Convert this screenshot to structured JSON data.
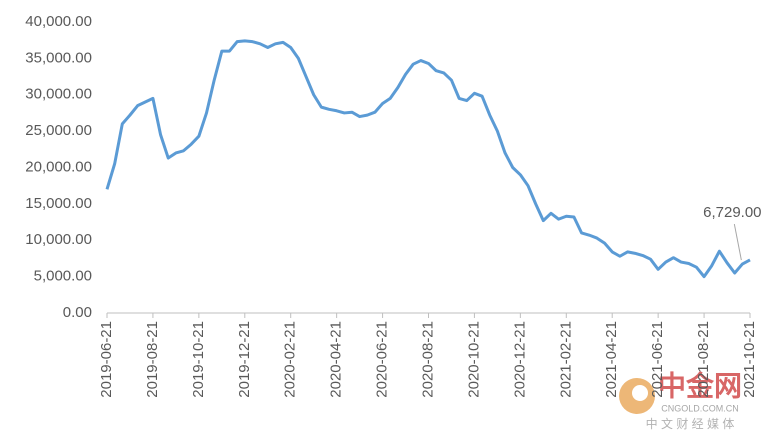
{
  "chart_data": {
    "type": "line",
    "color": "#5b9bd5",
    "categories": [
      "2019-06-21",
      null,
      null,
      null,
      null,
      null,
      "2019-08-21",
      null,
      null,
      null,
      null,
      null,
      "2019-10-21",
      null,
      null,
      null,
      null,
      null,
      "2019-12-21",
      null,
      null,
      null,
      null,
      null,
      "2020-02-21",
      null,
      null,
      null,
      null,
      null,
      "2020-04-21",
      null,
      null,
      null,
      null,
      null,
      "2020-06-21",
      null,
      null,
      null,
      null,
      null,
      "2020-08-21",
      null,
      null,
      null,
      null,
      null,
      "2020-10-21",
      null,
      null,
      null,
      null,
      null,
      "2020-12-21",
      null,
      null,
      null,
      null,
      null,
      "2021-02-21",
      null,
      null,
      null,
      null,
      null,
      "2021-04-21",
      null,
      null,
      null,
      null,
      null,
      "2021-06-21",
      null,
      null,
      null,
      null,
      null,
      "2021-08-21",
      null,
      null,
      null,
      null,
      null,
      "2021-10-21"
    ],
    "values": [
      17000,
      20500,
      26000,
      27200,
      28500,
      29000,
      29500,
      24500,
      21300,
      22000,
      22300,
      23200,
      24300,
      27500,
      32000,
      36000,
      36000,
      37300,
      37400,
      37300,
      37000,
      36500,
      37000,
      37200,
      36500,
      35000,
      32500,
      30000,
      28300,
      28000,
      27800,
      27500,
      27600,
      27000,
      27200,
      27600,
      28800,
      29500,
      31000,
      32800,
      34200,
      34700,
      34300,
      33300,
      33000,
      32000,
      29500,
      29200,
      30200,
      29800,
      27200,
      25000,
      22000,
      20000,
      19000,
      17500,
      15000,
      12700,
      13700,
      12900,
      13300,
      13200,
      11000,
      10700,
      10300,
      9600,
      8400,
      7800,
      8400,
      8200,
      7900,
      7400,
      6000,
      7000,
      7600,
      7000,
      6800,
      6300,
      5000,
      6500,
      8500,
      6900,
      5500,
      6729,
      7300
    ],
    "value_labels": [
      null,
      null,
      null,
      null,
      null,
      null,
      null,
      null,
      null,
      null,
      null,
      null,
      null,
      null,
      null,
      null,
      null,
      null,
      null,
      null,
      null,
      null,
      null,
      null,
      null,
      null,
      null,
      null,
      null,
      null,
      null,
      null,
      null,
      null,
      null,
      null,
      null,
      null,
      null,
      null,
      null,
      null,
      null,
      null,
      null,
      null,
      null,
      null,
      null,
      null,
      null,
      null,
      null,
      null,
      null,
      null,
      null,
      null,
      null,
      null,
      null,
      null,
      null,
      null,
      null,
      null,
      null,
      null,
      null,
      null,
      null,
      null,
      null,
      null,
      null,
      null,
      null,
      null,
      null,
      null,
      null,
      null,
      null,
      "6,729.00",
      null
    ],
    "ylim": [
      0,
      40000
    ],
    "yticks": [
      {
        "value": 0,
        "label": "0.00"
      },
      {
        "value": 5000,
        "label": "5,000.00"
      },
      {
        "value": 10000,
        "label": "10,000.00"
      },
      {
        "value": 15000,
        "label": "15,000.00"
      },
      {
        "value": 20000,
        "label": "20,000.00"
      },
      {
        "value": 25000,
        "label": "25,000.00"
      },
      {
        "value": 30000,
        "label": "30,000.00"
      },
      {
        "value": 35000,
        "label": "35,000.00"
      },
      {
        "value": 40000,
        "label": "40,000.00"
      }
    ],
    "grid": false
  },
  "watermark": {
    "logo": "中金网",
    "url": "CNGOLD.COM.CN",
    "caption": "中 文 财 经 媒 体"
  }
}
